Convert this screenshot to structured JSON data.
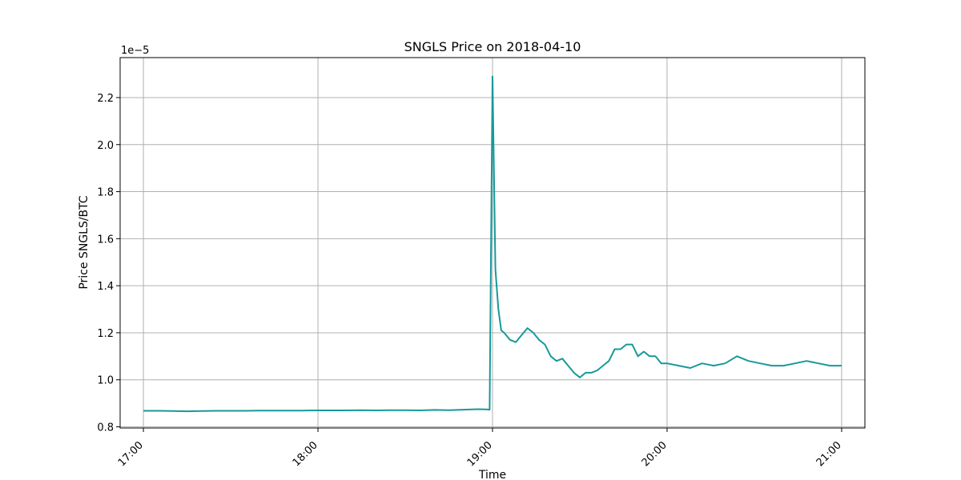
{
  "chart_data": {
    "type": "line",
    "title": "SNGLS Price on 2018-04-10",
    "xlabel": "Time",
    "ylabel": "Price SNGLS/BTC",
    "y_offset_label": "1e−5",
    "x_ticks": [
      "17:00",
      "18:00",
      "19:00",
      "20:00",
      "21:00"
    ],
    "y_ticks": [
      "0.8",
      "1.0",
      "1.2",
      "1.4",
      "1.6",
      "1.8",
      "2.0",
      "2.2"
    ],
    "xlim": [
      "16:52",
      "21:08"
    ],
    "ylim": [
      0.795,
      2.37
    ],
    "grid": true,
    "line_color": "#17999b",
    "series": [
      {
        "x": [
          "17:00",
          "17:05",
          "17:10",
          "17:15",
          "17:20",
          "17:25",
          "17:30",
          "17:35",
          "17:40",
          "17:45",
          "17:50",
          "17:55",
          "18:00",
          "18:05",
          "18:10",
          "18:15",
          "18:20",
          "18:25",
          "18:30",
          "18:35",
          "18:40",
          "18:45",
          "18:50",
          "18:55",
          "18:58",
          "18:59",
          "19:00",
          "19:01",
          "19:02",
          "19:03",
          "19:04",
          "19:06",
          "19:08",
          "19:10",
          "19:12",
          "19:14",
          "19:16",
          "19:18",
          "19:20",
          "19:22",
          "19:24",
          "19:26",
          "19:28",
          "19:30",
          "19:32",
          "19:34",
          "19:36",
          "19:38",
          "19:40",
          "19:42",
          "19:44",
          "19:46",
          "19:48",
          "19:50",
          "19:52",
          "19:54",
          "19:56",
          "19:58",
          "20:00",
          "20:04",
          "20:08",
          "20:12",
          "20:16",
          "20:20",
          "20:24",
          "20:28",
          "20:32",
          "20:36",
          "20:40",
          "20:44",
          "20:48",
          "20:52",
          "20:56",
          "21:00"
        ],
        "values": [
          0.868,
          0.868,
          0.867,
          0.866,
          0.867,
          0.868,
          0.868,
          0.868,
          0.869,
          0.869,
          0.869,
          0.869,
          0.87,
          0.87,
          0.87,
          0.871,
          0.87,
          0.871,
          0.871,
          0.87,
          0.872,
          0.871,
          0.873,
          0.875,
          0.874,
          0.873,
          2.29,
          1.47,
          1.3,
          1.21,
          1.2,
          1.17,
          1.16,
          1.19,
          1.22,
          1.2,
          1.17,
          1.15,
          1.1,
          1.08,
          1.09,
          1.06,
          1.03,
          1.01,
          1.03,
          1.03,
          1.04,
          1.06,
          1.08,
          1.13,
          1.13,
          1.15,
          1.15,
          1.1,
          1.12,
          1.1,
          1.1,
          1.07,
          1.07,
          1.06,
          1.05,
          1.07,
          1.06,
          1.07,
          1.1,
          1.08,
          1.07,
          1.06,
          1.06,
          1.07,
          1.08,
          1.07,
          1.06,
          1.06
        ]
      }
    ]
  }
}
